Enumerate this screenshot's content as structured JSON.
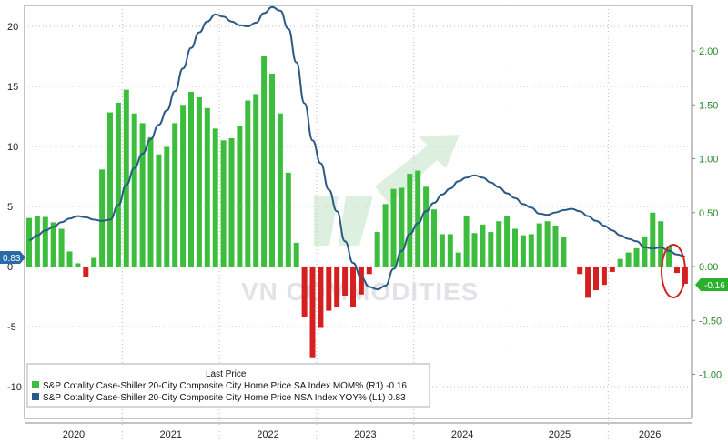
{
  "watermark": "VN COMMODITIES",
  "legend": {
    "header": "Last Price",
    "items": [
      {
        "label": "S&P Cotality Case-Shiller 20-City Composite City Home Price SA Index MOM%  (R1)  -0.16",
        "color": "#3dbd3d"
      },
      {
        "label": "S&P Cotality Case-Shiller 20-City Composite City Home Price NSA Index YOY%  (L1) 0.83",
        "color": "#2b5a86"
      }
    ]
  },
  "last_values": {
    "yoy": "0.83",
    "mom": "-0.16"
  },
  "colors": {
    "bar_pos": "#3dbd3d",
    "bar_neg": "#d42020",
    "line": "#2b5a86",
    "grid": "#bbbbbb",
    "highlight": "#d42020"
  },
  "chart_data": {
    "type": "bar+line",
    "x_axis": {
      "years": [
        "2020",
        "2021",
        "2022",
        "2023",
        "2024",
        "2025",
        "2026"
      ]
    },
    "left_axis": {
      "range": [
        -12.5,
        22
      ],
      "ticks": [
        "-10",
        "-5",
        "0",
        "5",
        "10",
        "15",
        "20"
      ]
    },
    "right_axis": {
      "range": [
        -1.25,
        2.2
      ],
      "ticks": [
        "-1.00",
        "-0.50",
        "0.00",
        "0.50",
        "1.00",
        "1.50",
        "2.00"
      ]
    },
    "series": [
      {
        "name": "S&P Cotality Case-Shiller 20-City Composite City Home Price SA Index MOM%",
        "axis": "right",
        "kind": "bar",
        "values": [
          0.45,
          0.47,
          0.46,
          0.41,
          0.35,
          0.14,
          0.03,
          -0.1,
          0.08,
          0.9,
          1.43,
          1.52,
          1.64,
          1.42,
          1.33,
          1.2,
          1.04,
          1.11,
          1.33,
          1.5,
          1.62,
          1.57,
          1.47,
          1.28,
          1.17,
          1.19,
          1.3,
          1.54,
          1.6,
          1.95,
          1.79,
          1.42,
          0.87,
          0.22,
          -0.47,
          -0.85,
          -0.57,
          -0.41,
          -0.38,
          -0.27,
          -0.38,
          -0.26,
          -0.07,
          0.32,
          0.58,
          0.72,
          0.73,
          0.86,
          0.89,
          0.74,
          0.53,
          0.3,
          0.3,
          0.13,
          0.47,
          0.31,
          0.39,
          0.32,
          0.42,
          0.47,
          0.35,
          0.29,
          0.3,
          0.4,
          0.42,
          0.38,
          0.27,
          0.0,
          -0.07,
          -0.29,
          -0.22,
          -0.17,
          -0.05,
          0.07,
          0.13,
          0.17,
          0.28,
          0.5,
          0.42,
          0.19,
          -0.06,
          -0.16
        ]
      },
      {
        "name": "S&P Cotality Case-Shiller 20-City Composite City Home Price NSA Index YOY%",
        "axis": "left",
        "kind": "line",
        "values": [
          2.2,
          2.6,
          3.0,
          3.3,
          3.7,
          4.0,
          4.2,
          4.1,
          3.9,
          3.8,
          3.9,
          5.1,
          6.8,
          8.2,
          9.4,
          10.6,
          11.8,
          13.0,
          14.6,
          16.5,
          18.2,
          19.5,
          20.4,
          21.0,
          20.8,
          20.4,
          20.1,
          20.0,
          20.3,
          21.1,
          21.6,
          21.3,
          19.8,
          17.0,
          13.6,
          10.5,
          8.6,
          6.4,
          4.6,
          2.1,
          0.3,
          -0.9,
          -1.7,
          -1.9,
          -1.6,
          -0.2,
          1.3,
          2.7,
          3.6,
          4.6,
          5.3,
          6.0,
          6.5,
          7.1,
          7.4,
          7.6,
          7.4,
          7.0,
          6.6,
          6.1,
          5.7,
          5.2,
          4.9,
          4.4,
          4.3,
          4.5,
          4.7,
          4.8,
          4.6,
          4.2,
          3.8,
          3.4,
          3.0,
          2.6,
          2.3,
          2.1,
          1.6,
          1.5,
          1.6,
          1.3,
          1.0,
          0.83
        ]
      }
    ]
  }
}
